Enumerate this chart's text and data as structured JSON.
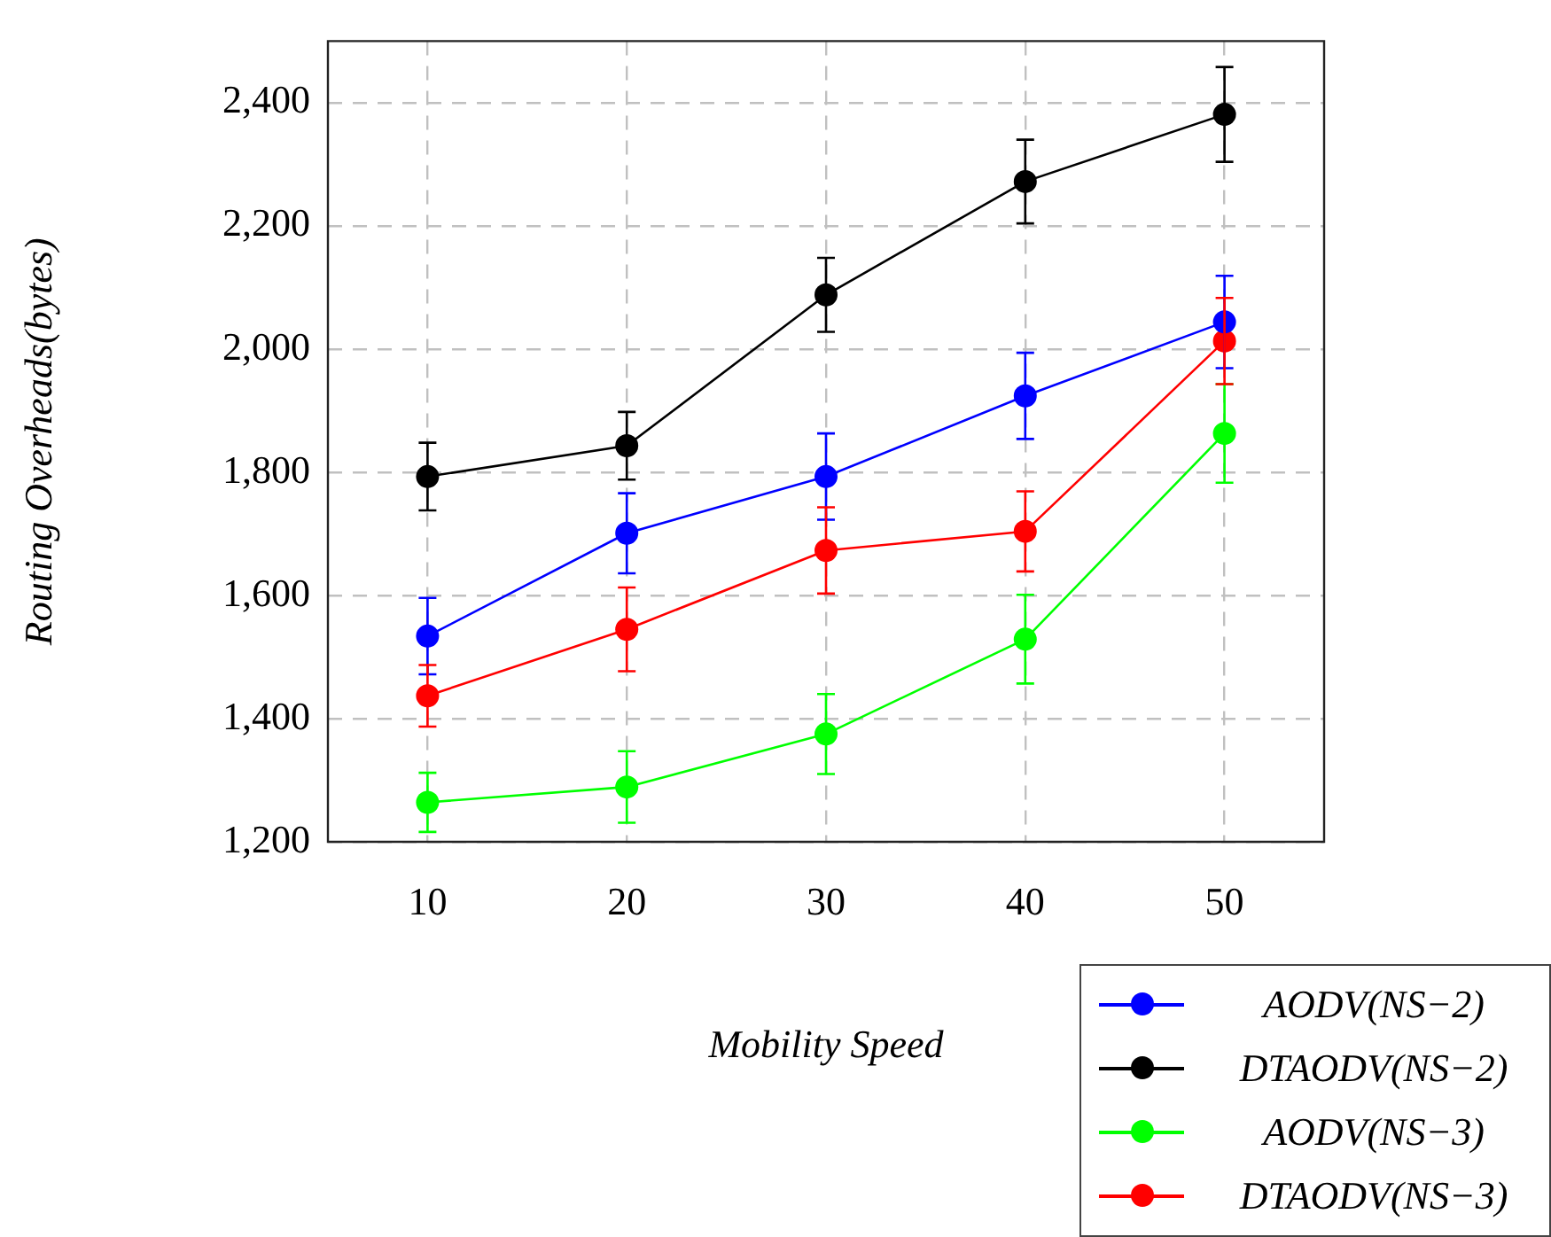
{
  "chart_data": {
    "type": "line",
    "xlabel": "Mobility Speed",
    "ylabel": "Routing Overheads(bytes)",
    "x": [
      10,
      20,
      30,
      40,
      50
    ],
    "xlim": [
      5,
      55
    ],
    "xticks": [
      10,
      20,
      30,
      40,
      50
    ],
    "ylim": [
      1200,
      2500
    ],
    "yticks": [
      {
        "value": 1200,
        "label": "1,200"
      },
      {
        "value": 1400,
        "label": "1,400"
      },
      {
        "value": 1600,
        "label": "1,600"
      },
      {
        "value": 1800,
        "label": "1,800"
      },
      {
        "value": 2000,
        "label": "2,000"
      },
      {
        "value": 2200,
        "label": "2,200"
      },
      {
        "value": 2400,
        "label": "2,400"
      }
    ],
    "grid": true,
    "legend": "bottom right",
    "marker": "circle",
    "line_style": "solid",
    "series": [
      {
        "name": "AODV(NS−2)",
        "color": "#0000ff",
        "values": [
          1534,
          1701,
          1793,
          1924,
          2044
        ],
        "errors": [
          62,
          65,
          70,
          70,
          75
        ]
      },
      {
        "name": "DTAODV(NS−2)",
        "color": "#000000",
        "values": [
          1793,
          1843,
          2088,
          2272,
          2381
        ],
        "errors": [
          55,
          55,
          60,
          68,
          77
        ]
      },
      {
        "name": "AODV(NS−3)",
        "color": "#00ff00",
        "values": [
          1264,
          1289,
          1375,
          1529,
          1863
        ],
        "errors": [
          48,
          58,
          65,
          72,
          80
        ]
      },
      {
        "name": "DTAODV(NS−3)",
        "color": "#ff0000",
        "values": [
          1437,
          1545,
          1673,
          1704,
          2013
        ],
        "errors": [
          50,
          68,
          70,
          65,
          70
        ]
      }
    ]
  }
}
